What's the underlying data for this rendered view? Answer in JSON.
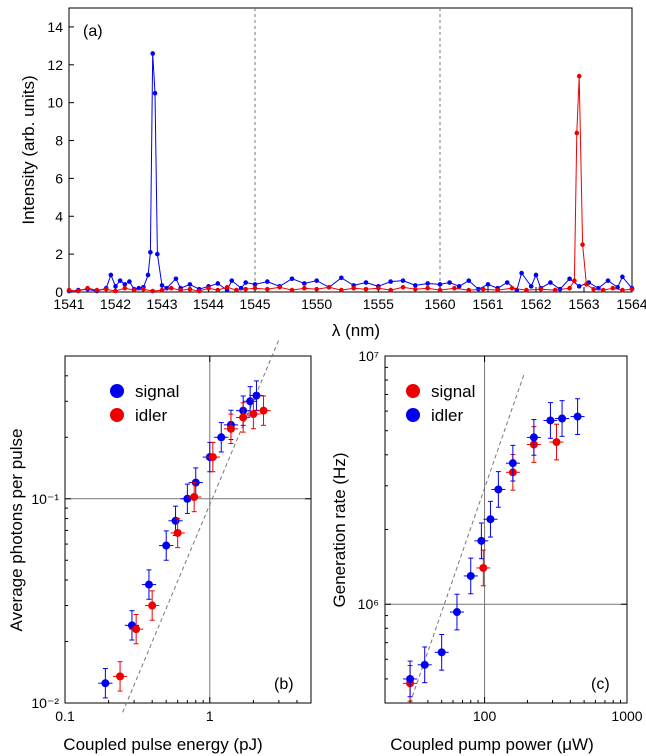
{
  "chart_data": [
    {
      "panel": "(a)",
      "type": "line",
      "xlabel": "λ (nm)",
      "ylabel": "Intensity (arb. units)",
      "ylim": [
        0,
        15
      ],
      "yticks": [
        0,
        2,
        4,
        6,
        8,
        10,
        12,
        14
      ],
      "xtick_labels": [
        "1541",
        "1542",
        "1543",
        "1544",
        "1545",
        "1550",
        "1555",
        "1560",
        "1561",
        "1562",
        "1563",
        "1564"
      ],
      "x_breaks": [
        "1545",
        "1560"
      ],
      "colors": {
        "blue": "#0000ee",
        "red": "#ee0000"
      },
      "series": [
        {
          "color": "blue",
          "points": [
            [
              1541.0,
              0.05
            ],
            [
              1541.2,
              0.1
            ],
            [
              1541.4,
              0.15
            ],
            [
              1541.6,
              0.05
            ],
            [
              1541.8,
              0.2
            ],
            [
              1541.9,
              0.9
            ],
            [
              1542.0,
              0.3
            ],
            [
              1542.1,
              0.6
            ],
            [
              1542.2,
              0.4
            ],
            [
              1542.3,
              0.55
            ],
            [
              1542.4,
              0.15
            ],
            [
              1542.5,
              0.2
            ],
            [
              1542.6,
              0.25
            ],
            [
              1542.7,
              0.9
            ],
            [
              1542.75,
              2.1
            ],
            [
              1542.8,
              12.6
            ],
            [
              1542.85,
              10.5
            ],
            [
              1542.9,
              2.0
            ],
            [
              1543.0,
              0.35
            ],
            [
              1543.1,
              0.2
            ],
            [
              1543.3,
              0.7
            ],
            [
              1543.4,
              0.2
            ],
            [
              1543.6,
              0.4
            ],
            [
              1543.8,
              0.15
            ],
            [
              1544.0,
              0.3
            ],
            [
              1544.2,
              0.45
            ],
            [
              1544.4,
              0.1
            ],
            [
              1544.5,
              0.6
            ],
            [
              1544.7,
              0.2
            ],
            [
              1544.8,
              0.5
            ],
            [
              1545.0,
              0.4
            ],
            [
              1546.0,
              0.55
            ],
            [
              1547.0,
              0.3
            ],
            [
              1548.0,
              0.7
            ],
            [
              1549.0,
              0.45
            ],
            [
              1550.0,
              0.6
            ],
            [
              1551.0,
              0.25
            ],
            [
              1552.0,
              0.75
            ],
            [
              1553.0,
              0.35
            ],
            [
              1554.0,
              0.5
            ],
            [
              1555.0,
              0.3
            ],
            [
              1556.0,
              0.55
            ],
            [
              1557.0,
              0.6
            ],
            [
              1558.0,
              0.35
            ],
            [
              1559.0,
              0.45
            ],
            [
              1560.0,
              0.4
            ],
            [
              1560.2,
              0.5
            ],
            [
              1560.4,
              0.3
            ],
            [
              1560.6,
              0.6
            ],
            [
              1560.8,
              0.15
            ],
            [
              1561.0,
              0.4
            ],
            [
              1561.2,
              0.2
            ],
            [
              1561.4,
              0.5
            ],
            [
              1561.6,
              0.1
            ],
            [
              1561.7,
              1.0
            ],
            [
              1561.9,
              0.3
            ],
            [
              1562.0,
              0.9
            ],
            [
              1562.1,
              0.2
            ],
            [
              1562.3,
              0.5
            ],
            [
              1562.5,
              0.15
            ],
            [
              1562.7,
              0.7
            ],
            [
              1562.9,
              0.3
            ],
            [
              1563.1,
              0.5
            ],
            [
              1563.3,
              0.2
            ],
            [
              1563.5,
              0.6
            ],
            [
              1563.7,
              0.25
            ],
            [
              1563.8,
              0.8
            ],
            [
              1564.0,
              0.2
            ]
          ]
        },
        {
          "color": "red",
          "points": [
            [
              1541.0,
              0.1
            ],
            [
              1541.2,
              0.05
            ],
            [
              1541.4,
              0.2
            ],
            [
              1541.6,
              0.1
            ],
            [
              1541.8,
              0.15
            ],
            [
              1542.0,
              0.05
            ],
            [
              1542.2,
              0.2
            ],
            [
              1542.4,
              0.1
            ],
            [
              1542.6,
              0.15
            ],
            [
              1542.8,
              0.05
            ],
            [
              1543.0,
              0.1
            ],
            [
              1543.2,
              0.2
            ],
            [
              1543.4,
              0.1
            ],
            [
              1543.6,
              0.15
            ],
            [
              1543.8,
              0.05
            ],
            [
              1544.0,
              0.2
            ],
            [
              1544.2,
              0.1
            ],
            [
              1544.4,
              0.25
            ],
            [
              1544.6,
              0.1
            ],
            [
              1544.8,
              0.15
            ],
            [
              1545.0,
              0.2
            ],
            [
              1546.0,
              0.15
            ],
            [
              1547.0,
              0.25
            ],
            [
              1548.0,
              0.1
            ],
            [
              1549.0,
              0.2
            ],
            [
              1550.0,
              0.15
            ],
            [
              1551.0,
              0.25
            ],
            [
              1552.0,
              0.1
            ],
            [
              1553.0,
              0.2
            ],
            [
              1554.0,
              0.15
            ],
            [
              1555.0,
              0.2
            ],
            [
              1556.0,
              0.1
            ],
            [
              1557.0,
              0.25
            ],
            [
              1558.0,
              0.15
            ],
            [
              1559.0,
              0.2
            ],
            [
              1560.0,
              0.1
            ],
            [
              1560.3,
              0.2
            ],
            [
              1560.6,
              0.1
            ],
            [
              1560.9,
              0.15
            ],
            [
              1561.2,
              0.1
            ],
            [
              1561.5,
              0.2
            ],
            [
              1561.8,
              0.1
            ],
            [
              1562.1,
              0.15
            ],
            [
              1562.4,
              0.1
            ],
            [
              1562.7,
              0.2
            ],
            [
              1562.8,
              0.6
            ],
            [
              1562.85,
              8.4
            ],
            [
              1562.9,
              11.4
            ],
            [
              1562.97,
              2.5
            ],
            [
              1563.05,
              0.4
            ],
            [
              1563.2,
              0.15
            ],
            [
              1563.4,
              0.1
            ],
            [
              1563.6,
              0.2
            ],
            [
              1563.8,
              0.1
            ],
            [
              1564.0,
              0.15
            ]
          ]
        }
      ]
    },
    {
      "panel": "(b)",
      "type": "scatter",
      "xlabel": "Coupled pulse energy (pJ)",
      "ylabel": "Average photons per pulse",
      "x_scale": "log",
      "y_scale": "log",
      "xlim": [
        0.1,
        5
      ],
      "ylim": [
        0.01,
        0.5
      ],
      "xtick_labels": [
        "0.1",
        "1"
      ],
      "ytick_labels": [
        "10⁻²",
        "10⁻¹"
      ],
      "legend": [
        "signal",
        "idler"
      ],
      "legend_colors": [
        "#0000ee",
        "#ee0000"
      ],
      "series": [
        {
          "name": "signal",
          "color": "#0000ee",
          "points": [
            [
              0.19,
              0.0125
            ],
            [
              0.29,
              0.024
            ],
            [
              0.38,
              0.038
            ],
            [
              0.5,
              0.059
            ],
            [
              0.58,
              0.078
            ],
            [
              0.7,
              0.1
            ],
            [
              0.8,
              0.12
            ],
            [
              1.0,
              0.16
            ],
            [
              1.2,
              0.2
            ],
            [
              1.4,
              0.23
            ],
            [
              1.7,
              0.27
            ],
            [
              1.9,
              0.3
            ],
            [
              2.1,
              0.32
            ]
          ]
        },
        {
          "name": "idler",
          "color": "#ee0000",
          "points": [
            [
              0.24,
              0.0135
            ],
            [
              0.31,
              0.023
            ],
            [
              0.4,
              0.03
            ],
            [
              0.6,
              0.068
            ],
            [
              0.78,
              0.102
            ],
            [
              1.05,
              0.16
            ],
            [
              1.4,
              0.22
            ],
            [
              1.7,
              0.25
            ],
            [
              2.0,
              0.26
            ],
            [
              2.35,
              0.27
            ]
          ]
        }
      ],
      "fit_line": [
        [
          0.25,
          0.009
        ],
        [
          3.0,
          0.6
        ]
      ]
    },
    {
      "panel": "(c)",
      "type": "scatter",
      "xlabel": "Coupled pump power (μW)",
      "ylabel": "Generation rate (Hz)",
      "x_scale": "log",
      "y_scale": "log",
      "xlim": [
        20,
        1000
      ],
      "ylim": [
        400000,
        10000000
      ],
      "xtick_labels": [
        "100",
        "1000"
      ],
      "ytick_labels": [
        "10⁶",
        "10⁷"
      ],
      "legend": [
        "signal",
        "idler"
      ],
      "legend_colors": [
        "#ee0000",
        "#0000ee"
      ],
      "series": [
        {
          "name": "signal",
          "color": "#ee0000",
          "points": [
            [
              30,
              480000
            ],
            [
              98,
              1400000
            ],
            [
              158,
              3400000
            ],
            [
              222,
              4400000
            ],
            [
              320,
              4500000
            ]
          ]
        },
        {
          "name": "idler",
          "color": "#0000ee",
          "points": [
            [
              30,
              500000
            ],
            [
              38,
              570000
            ],
            [
              50,
              640000
            ],
            [
              64,
              930000
            ],
            [
              80,
              1300000
            ],
            [
              95,
              1800000
            ],
            [
              110,
              2200000
            ],
            [
              125,
              2900000
            ],
            [
              158,
              3700000
            ],
            [
              222,
              4700000
            ],
            [
              290,
              5500000
            ],
            [
              350,
              5600000
            ],
            [
              450,
              5700000
            ]
          ]
        }
      ],
      "fit_line": [
        [
          30,
          400000
        ],
        [
          190,
          8500000
        ]
      ]
    }
  ]
}
